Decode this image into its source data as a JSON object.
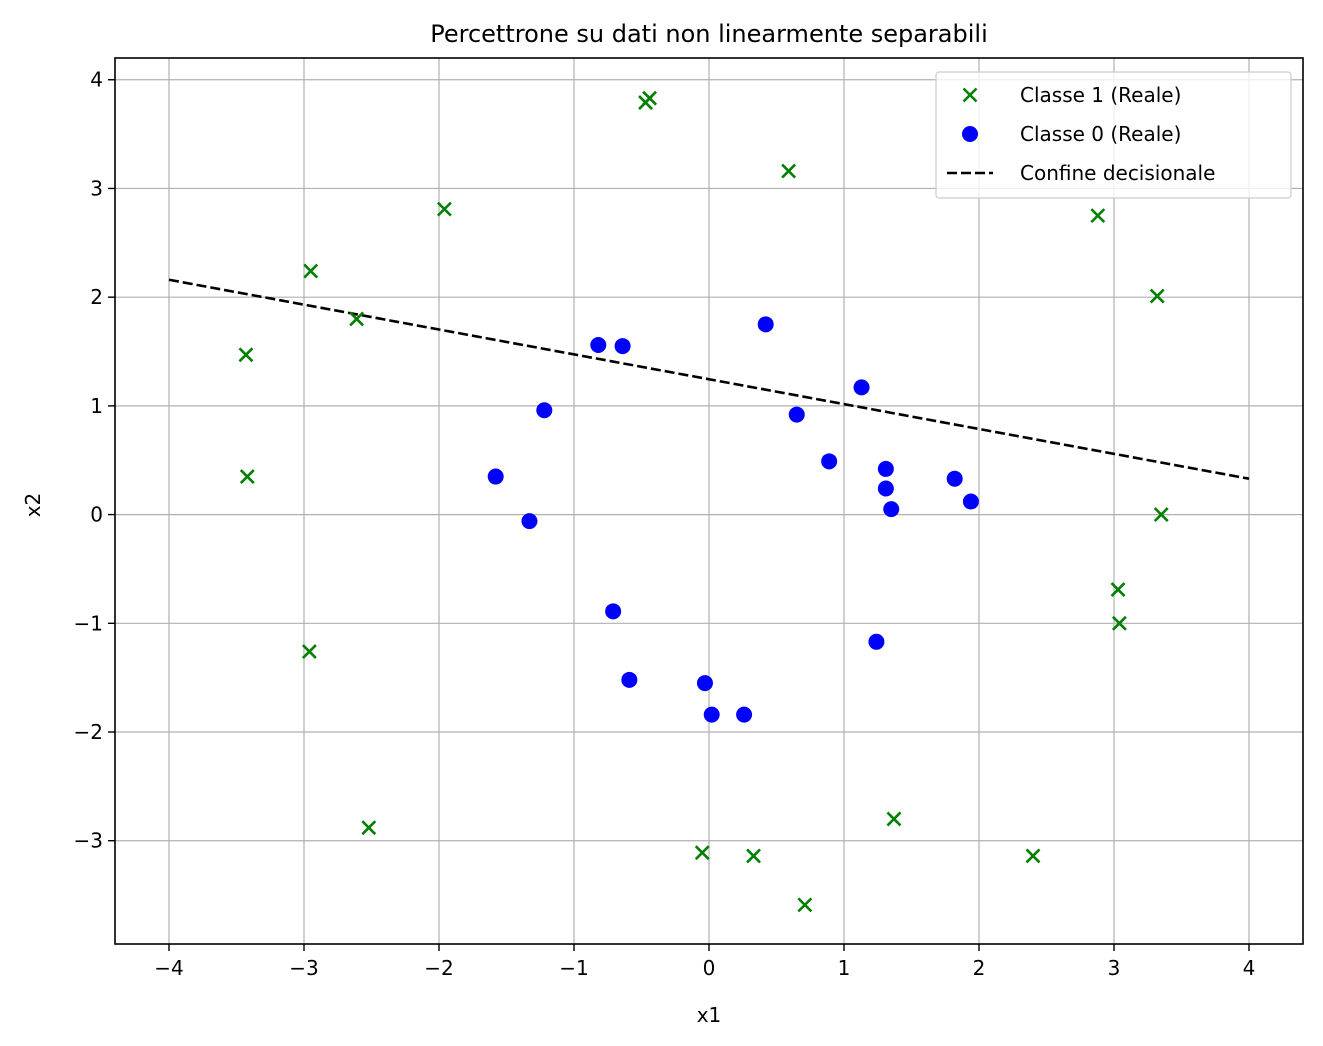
{
  "chart_data": {
    "type": "scatter",
    "title": "Percettrone su dati non linearmente separabili",
    "xlabel": "x1",
    "ylabel": "x2",
    "xlim": [
      -4.4,
      4.4
    ],
    "ylim": [
      -3.95,
      4.2
    ],
    "xticks": [
      -4,
      -3,
      -2,
      -1,
      0,
      1,
      2,
      3,
      4
    ],
    "yticks": [
      -3,
      -2,
      -1,
      0,
      1,
      2,
      3,
      4
    ],
    "xtick_labels": [
      "−4",
      "−3",
      "−2",
      "−1",
      "0",
      "1",
      "2",
      "3",
      "4"
    ],
    "ytick_labels": [
      "−3",
      "−2",
      "−1",
      "0",
      "1",
      "2",
      "3",
      "4"
    ],
    "grid": true,
    "legend_position": "top-right",
    "series": [
      {
        "name": "Classe 1 (Reale)",
        "marker": "x",
        "color": "#008000",
        "points": [
          [
            -0.47,
            3.79
          ],
          [
            -0.44,
            3.83
          ],
          [
            0.59,
            3.16
          ],
          [
            -1.96,
            2.81
          ],
          [
            -2.95,
            2.24
          ],
          [
            -2.61,
            1.8
          ],
          [
            -3.43,
            1.47
          ],
          [
            -3.42,
            0.35
          ],
          [
            -2.96,
            -1.26
          ],
          [
            -2.52,
            -2.88
          ],
          [
            -0.05,
            -3.11
          ],
          [
            0.33,
            -3.14
          ],
          [
            0.71,
            -3.59
          ],
          [
            1.37,
            -2.8
          ],
          [
            2.4,
            -3.14
          ],
          [
            2.88,
            2.75
          ],
          [
            3.32,
            2.01
          ],
          [
            3.35,
            0.0
          ],
          [
            3.03,
            -0.69
          ],
          [
            3.04,
            -1.0
          ]
        ]
      },
      {
        "name": "Classe 0 (Reale)",
        "marker": "o",
        "color": "#0000ff",
        "points": [
          [
            -0.82,
            1.56
          ],
          [
            -0.64,
            1.55
          ],
          [
            0.42,
            1.75
          ],
          [
            -1.22,
            0.96
          ],
          [
            1.13,
            1.17
          ],
          [
            0.65,
            0.92
          ],
          [
            0.89,
            0.49
          ],
          [
            1.31,
            0.42
          ],
          [
            1.31,
            0.24
          ],
          [
            1.35,
            0.05
          ],
          [
            1.82,
            0.33
          ],
          [
            1.94,
            0.12
          ],
          [
            -1.58,
            0.35
          ],
          [
            -1.33,
            -0.06
          ],
          [
            -0.71,
            -0.89
          ],
          [
            -0.59,
            -1.52
          ],
          [
            -0.03,
            -1.55
          ],
          [
            0.02,
            -1.84
          ],
          [
            0.26,
            -1.84
          ],
          [
            1.24,
            -1.17
          ]
        ]
      },
      {
        "name": "Confine decisionale",
        "marker": "dashed-line",
        "color": "#000000",
        "points": [
          [
            -4.0,
            2.16
          ],
          [
            4.0,
            0.33
          ]
        ]
      }
    ]
  }
}
